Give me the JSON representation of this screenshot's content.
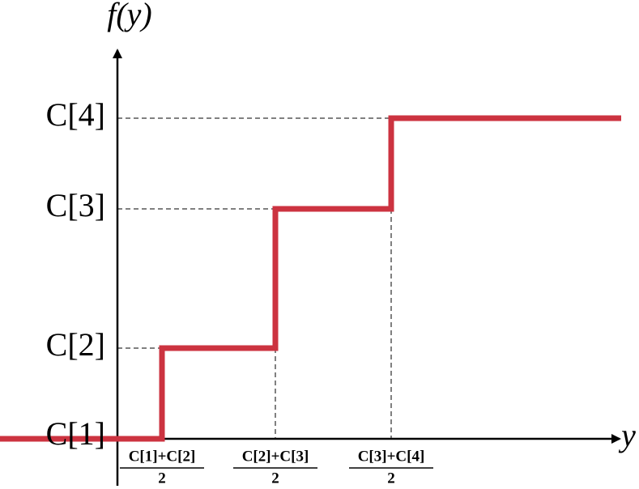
{
  "axis_labels": {
    "y": "f(y)",
    "x": "y"
  },
  "levels": [
    "C[1]",
    "C[2]",
    "C[3]",
    "C[4]"
  ],
  "thresholds": [
    {
      "numerator": "C[1]+C[2]",
      "denominator": "2"
    },
    {
      "numerator": "C[2]+C[3]",
      "denominator": "2"
    },
    {
      "numerator": "C[3]+C[4]",
      "denominator": "2"
    }
  ]
}
